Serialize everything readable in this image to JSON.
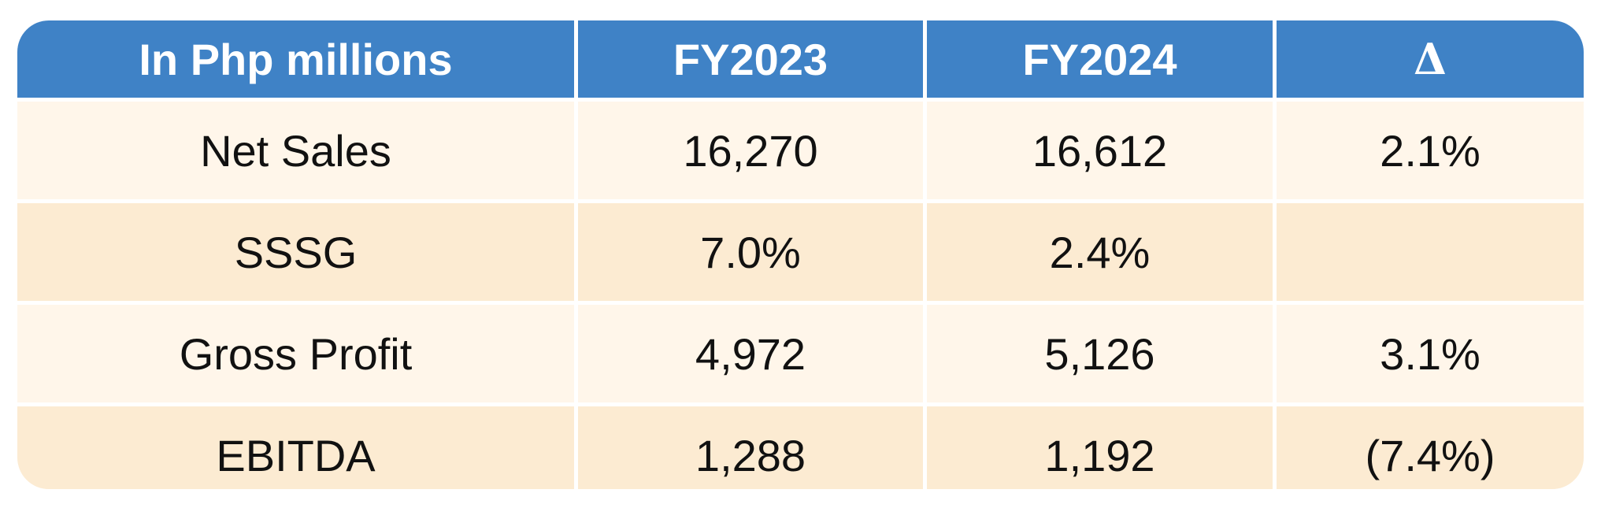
{
  "table": {
    "headers": [
      "In Php millions",
      "FY2023",
      "FY2024",
      "Δ"
    ],
    "rows": [
      [
        "Net Sales",
        "16,270",
        "16,612",
        "2.1%"
      ],
      [
        "SSSG",
        "7.0%",
        "2.4%",
        ""
      ],
      [
        "Gross Profit",
        "4,972",
        "5,126",
        "3.1%"
      ],
      [
        "EBITDA",
        "1,288",
        "1,192",
        "(7.4%)"
      ]
    ]
  },
  "colors": {
    "header_bg": "#3f82c6",
    "header_text": "#ffffff",
    "row_light": "#fff6ea",
    "row_dark": "#fcebd2"
  }
}
